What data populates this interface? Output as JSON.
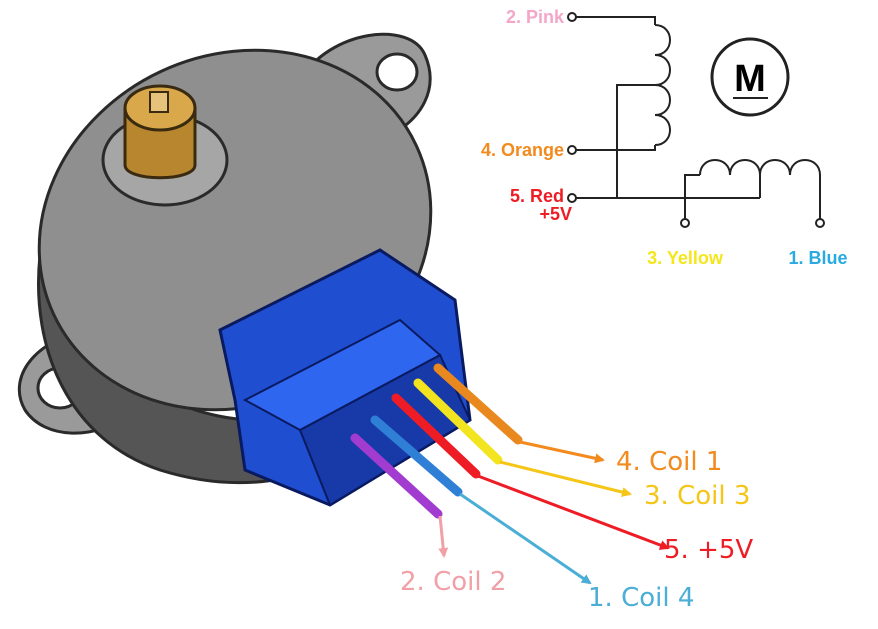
{
  "schematic": {
    "motor_symbol": "M",
    "pins": [
      {
        "label": "2. Pink",
        "color": "#f4a6c8"
      },
      {
        "label": "4. Orange",
        "color": "#f28a1e"
      },
      {
        "label": "5. Red",
        "label2": "+5V",
        "color": "#ee1c25"
      },
      {
        "label": "3. Yellow",
        "color": "#f5e61a"
      },
      {
        "label": "1. Blue",
        "color": "#29abe2"
      }
    ]
  },
  "wires": [
    {
      "label": "4. Coil 1",
      "color": "#f28a1e"
    },
    {
      "label": "3. Coil 3",
      "color": "#f5c518"
    },
    {
      "label": "5. +5V",
      "color": "#ee1c25"
    },
    {
      "label": "2. Coil 2",
      "color": "#f0a0a6"
    },
    {
      "label": "1. Coil 4",
      "color": "#4aaed6"
    }
  ],
  "wire_colors": {
    "orange": "#e8881e",
    "yellow": "#f2e51f",
    "red": "#ee1c25",
    "blue": "#2f7fd6",
    "purple": "#a23bd0"
  },
  "motor_colors": {
    "body": "#8c8c8c",
    "shaft": "#b8862e",
    "housing": "#1f4fd0"
  }
}
